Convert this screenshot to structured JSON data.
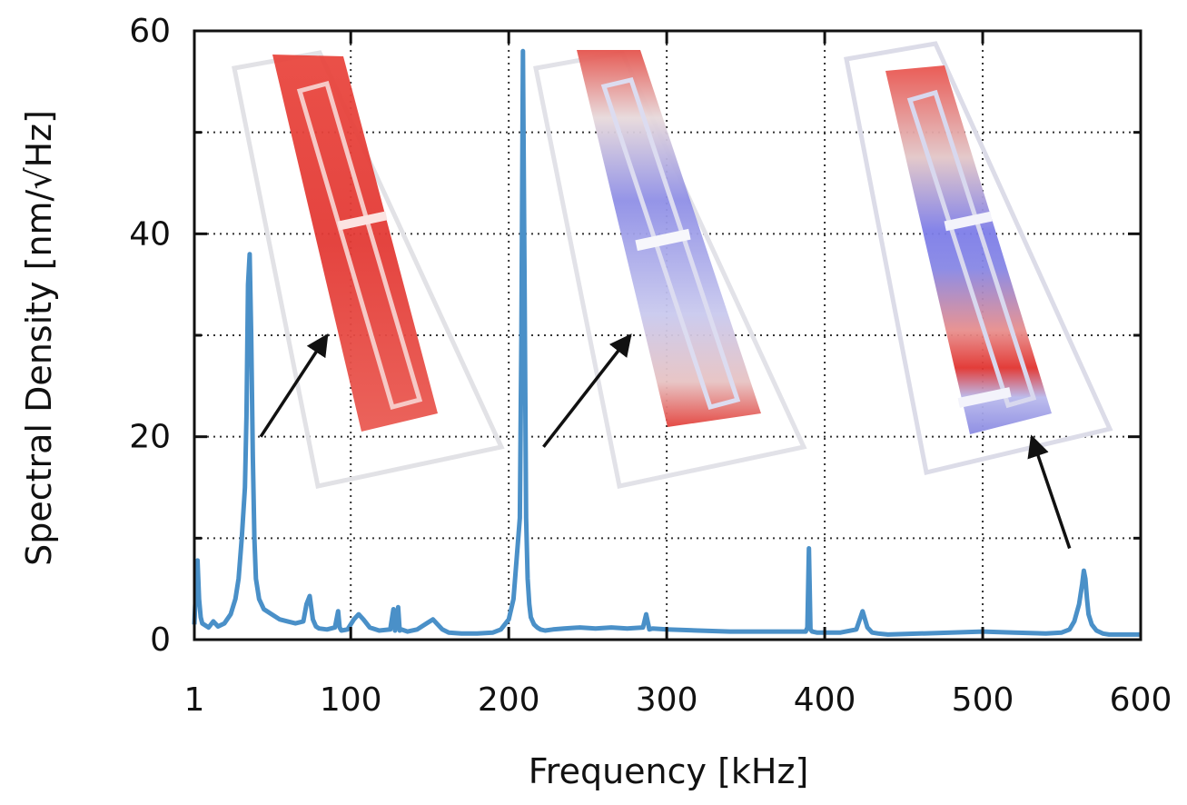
{
  "chart_data": {
    "type": "line",
    "title": "",
    "xlabel": "Frequency [kHz]",
    "ylabel": "Spectral Density [nm/√Hz]",
    "xlim": [
      1,
      600
    ],
    "ylim": [
      0,
      60
    ],
    "x_ticks": [
      1,
      100,
      200,
      300,
      400,
      500,
      600
    ],
    "y_ticks": [
      0,
      20,
      40,
      60
    ],
    "grid": true,
    "legend": "none",
    "line_color": "#4a90c8",
    "series": [
      {
        "x": [
          1,
          2,
          3,
          4,
          5,
          6,
          8,
          10,
          13,
          16,
          20,
          24,
          27,
          29,
          31,
          33,
          34,
          35,
          36,
          37,
          38,
          39,
          40,
          42,
          45,
          50,
          55,
          60,
          65,
          70,
          72,
          74,
          76,
          78,
          80,
          85,
          90,
          92,
          93,
          94,
          98,
          102,
          105,
          108,
          112,
          118,
          125,
          127,
          128,
          130,
          131,
          132,
          136,
          142,
          148,
          152,
          155,
          158,
          162,
          170,
          180,
          190,
          195,
          200,
          203,
          205,
          207,
          208,
          209,
          210,
          211,
          212,
          213,
          214,
          216,
          218,
          220,
          223,
          228,
          235,
          245,
          255,
          265,
          275,
          285,
          287,
          289,
          291,
          300,
          320,
          340,
          360,
          380,
          388,
          389,
          390,
          391,
          392,
          395,
          400,
          410,
          420,
          424,
          427,
          430,
          434,
          440,
          460,
          480,
          500,
          520,
          540,
          550,
          555,
          558,
          561,
          563,
          564,
          565,
          566,
          567,
          569,
          572,
          576,
          580,
          590,
          600
        ],
        "y": [
          1.5,
          5,
          7.8,
          4,
          2.2,
          1.6,
          1.4,
          1.2,
          1.8,
          1.3,
          1.6,
          2.5,
          4,
          6,
          10,
          15,
          22,
          35,
          38,
          30,
          18,
          10,
          6,
          4,
          3,
          2.5,
          2,
          1.8,
          1.6,
          1.8,
          3.5,
          4.3,
          2,
          1.3,
          1.1,
          1,
          1.2,
          2.8,
          1.2,
          0.9,
          1,
          2,
          2.5,
          2,
          1.2,
          0.9,
          1,
          3,
          0.9,
          3.2,
          0.9,
          1,
          0.8,
          1,
          1.6,
          2,
          1.5,
          1,
          0.7,
          0.6,
          0.6,
          0.7,
          1,
          2,
          4,
          8,
          12,
          30,
          58,
          35,
          12,
          6,
          3.5,
          2.2,
          1.5,
          1.2,
          1,
          0.9,
          1,
          1.1,
          1.2,
          1.1,
          1.2,
          1.1,
          1.2,
          2.5,
          1,
          1.1,
          1,
          0.9,
          0.8,
          0.8,
          0.8,
          0.8,
          1.2,
          9,
          1,
          0.8,
          0.7,
          0.7,
          0.7,
          1,
          2.8,
          1.2,
          0.7,
          0.6,
          0.5,
          0.6,
          0.7,
          0.8,
          0.7,
          0.6,
          0.7,
          1,
          1.8,
          3.5,
          5.5,
          6.8,
          6,
          4,
          2.5,
          1.5,
          0.9,
          0.6,
          0.5,
          0.5,
          0.5
        ]
      }
    ],
    "annotations": [
      {
        "from": [
          43,
          20
        ],
        "to": [
          85,
          30
        ]
      },
      {
        "from": [
          222,
          19
        ],
        "to": [
          277,
          30
        ]
      },
      {
        "from": [
          555,
          9
        ],
        "to": [
          531,
          20
        ]
      }
    ]
  },
  "insets": [
    {
      "name": "mode-shape-1",
      "mode": "red"
    },
    {
      "name": "mode-shape-2",
      "mode": "red-blue"
    },
    {
      "name": "mode-shape-3",
      "mode": "red-blue-split"
    }
  ]
}
